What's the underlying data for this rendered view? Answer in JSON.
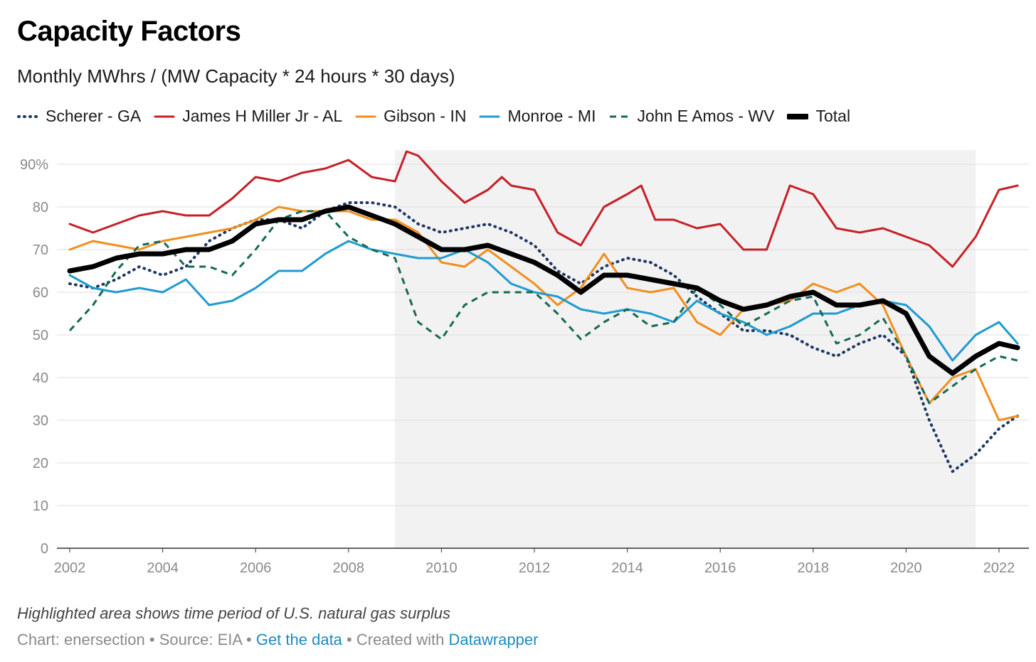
{
  "header": {
    "title": "Capacity Factors",
    "subtitle": "Monthly MWhrs / (MW Capacity * 24 hours * 30 days)"
  },
  "footer": {
    "note": "Highlighted area shows time period of U.S. natural gas surplus",
    "chart_by": "Chart: enersection",
    "sep": " • ",
    "source": "Source: EIA",
    "get_data": "Get the data",
    "created_with": "Created with",
    "datawrapper": "Datawrapper"
  },
  "colors": {
    "scherer": "#1f3864",
    "miller": "#c71f26",
    "gibson": "#f28e1c",
    "monroe": "#1f9bd0",
    "amos": "#146a52",
    "total": "#000000",
    "highlight": "#f2f2f3",
    "grid": "#dddddd"
  },
  "chart_data": {
    "type": "line",
    "title": "Capacity Factors",
    "subtitle": "Monthly MWhrs / (MW Capacity * 24 hours * 30 days)",
    "x_ticks": [
      "2002",
      "2004",
      "2006",
      "2008",
      "2010",
      "2012",
      "2014",
      "2016",
      "2018",
      "2020",
      "2022"
    ],
    "y_ticks": [
      "0",
      "10",
      "20",
      "30",
      "40",
      "50",
      "60",
      "70",
      "80",
      "90%"
    ],
    "ylim": [
      0,
      90
    ],
    "xlim": [
      2002,
      2022.5
    ],
    "grid": true,
    "legend_position": "top-left",
    "highlight_band": {
      "from": 2009.0,
      "to": 2021.5,
      "label": "U.S. natural gas surplus"
    },
    "series": [
      {
        "name": "Scherer - GA",
        "key": "scherer",
        "style": "dotted",
        "points": [
          [
            2002,
            62
          ],
          [
            2002.5,
            61
          ],
          [
            2003,
            63
          ],
          [
            2003.5,
            66
          ],
          [
            2004,
            64
          ],
          [
            2004.5,
            66
          ],
          [
            2005,
            72
          ],
          [
            2005.5,
            75
          ],
          [
            2006,
            77
          ],
          [
            2006.5,
            77
          ],
          [
            2007,
            75
          ],
          [
            2007.5,
            79
          ],
          [
            2008,
            81
          ],
          [
            2008.5,
            81
          ],
          [
            2009,
            80
          ],
          [
            2009.5,
            76
          ],
          [
            2010,
            74
          ],
          [
            2010.5,
            75
          ],
          [
            2011,
            76
          ],
          [
            2011.5,
            74
          ],
          [
            2012,
            71
          ],
          [
            2012.5,
            65
          ],
          [
            2013,
            62
          ],
          [
            2013.5,
            66
          ],
          [
            2014,
            68
          ],
          [
            2014.5,
            67
          ],
          [
            2015,
            64
          ],
          [
            2015.5,
            59
          ],
          [
            2016,
            55
          ],
          [
            2016.5,
            51
          ],
          [
            2017,
            51
          ],
          [
            2017.5,
            50
          ],
          [
            2018,
            47
          ],
          [
            2018.5,
            45
          ],
          [
            2019,
            48
          ],
          [
            2019.5,
            50
          ],
          [
            2020,
            45
          ],
          [
            2020.5,
            30
          ],
          [
            2021,
            18
          ],
          [
            2021.5,
            22
          ],
          [
            2022,
            28
          ],
          [
            2022.4,
            31
          ]
        ]
      },
      {
        "name": "James H Miller Jr - AL",
        "key": "miller",
        "style": "solid",
        "points": [
          [
            2002,
            76
          ],
          [
            2002.5,
            74
          ],
          [
            2003,
            76
          ],
          [
            2003.5,
            78
          ],
          [
            2004,
            79
          ],
          [
            2004.5,
            78
          ],
          [
            2005,
            78
          ],
          [
            2005.5,
            82
          ],
          [
            2006,
            87
          ],
          [
            2006.5,
            86
          ],
          [
            2007,
            88
          ],
          [
            2007.5,
            89
          ],
          [
            2008,
            91
          ],
          [
            2008.5,
            87
          ],
          [
            2009,
            86
          ],
          [
            2009.25,
            93
          ],
          [
            2009.5,
            92
          ],
          [
            2010,
            86
          ],
          [
            2010.5,
            81
          ],
          [
            2011,
            84
          ],
          [
            2011.3,
            87
          ],
          [
            2011.5,
            85
          ],
          [
            2012,
            84
          ],
          [
            2012.5,
            74
          ],
          [
            2013,
            71
          ],
          [
            2013.5,
            80
          ],
          [
            2014,
            83
          ],
          [
            2014.3,
            85
          ],
          [
            2014.6,
            77
          ],
          [
            2015,
            77
          ],
          [
            2015.5,
            75
          ],
          [
            2016,
            76
          ],
          [
            2016.5,
            70
          ],
          [
            2017,
            70
          ],
          [
            2017.5,
            85
          ],
          [
            2018,
            83
          ],
          [
            2018.5,
            75
          ],
          [
            2019,
            74
          ],
          [
            2019.5,
            75
          ],
          [
            2020,
            73
          ],
          [
            2020.5,
            71
          ],
          [
            2021,
            66
          ],
          [
            2021.5,
            73
          ],
          [
            2022,
            84
          ],
          [
            2022.4,
            85
          ]
        ]
      },
      {
        "name": "Gibson - IN",
        "key": "gibson",
        "style": "solid",
        "points": [
          [
            2002,
            70
          ],
          [
            2002.5,
            72
          ],
          [
            2003,
            71
          ],
          [
            2003.5,
            70
          ],
          [
            2004,
            72
          ],
          [
            2004.5,
            73
          ],
          [
            2005,
            74
          ],
          [
            2005.5,
            75
          ],
          [
            2006,
            77
          ],
          [
            2006.5,
            80
          ],
          [
            2007,
            79
          ],
          [
            2007.5,
            79
          ],
          [
            2008,
            79
          ],
          [
            2008.5,
            77
          ],
          [
            2009,
            77
          ],
          [
            2009.5,
            74
          ],
          [
            2010,
            67
          ],
          [
            2010.5,
            66
          ],
          [
            2011,
            70
          ],
          [
            2011.5,
            66
          ],
          [
            2012,
            62
          ],
          [
            2012.5,
            57
          ],
          [
            2013,
            61
          ],
          [
            2013.5,
            69
          ],
          [
            2014,
            61
          ],
          [
            2014.5,
            60
          ],
          [
            2015,
            61
          ],
          [
            2015.5,
            53
          ],
          [
            2016,
            50
          ],
          [
            2016.5,
            56
          ],
          [
            2017,
            57
          ],
          [
            2017.5,
            58
          ],
          [
            2018,
            62
          ],
          [
            2018.5,
            60
          ],
          [
            2019,
            62
          ],
          [
            2019.5,
            57
          ],
          [
            2020,
            45
          ],
          [
            2020.5,
            34
          ],
          [
            2021,
            40
          ],
          [
            2021.5,
            42
          ],
          [
            2022,
            30
          ],
          [
            2022.4,
            31
          ]
        ]
      },
      {
        "name": "Monroe - MI",
        "key": "monroe",
        "style": "solid",
        "points": [
          [
            2002,
            64
          ],
          [
            2002.5,
            61
          ],
          [
            2003,
            60
          ],
          [
            2003.5,
            61
          ],
          [
            2004,
            60
          ],
          [
            2004.5,
            63
          ],
          [
            2005,
            57
          ],
          [
            2005.5,
            58
          ],
          [
            2006,
            61
          ],
          [
            2006.5,
            65
          ],
          [
            2007,
            65
          ],
          [
            2007.5,
            69
          ],
          [
            2008,
            72
          ],
          [
            2008.5,
            70
          ],
          [
            2009,
            69
          ],
          [
            2009.5,
            68
          ],
          [
            2010,
            68
          ],
          [
            2010.5,
            70
          ],
          [
            2011,
            67
          ],
          [
            2011.5,
            62
          ],
          [
            2012,
            60
          ],
          [
            2012.5,
            59
          ],
          [
            2013,
            56
          ],
          [
            2013.5,
            55
          ],
          [
            2014,
            56
          ],
          [
            2014.5,
            55
          ],
          [
            2015,
            53
          ],
          [
            2015.5,
            58
          ],
          [
            2016,
            55
          ],
          [
            2016.5,
            53
          ],
          [
            2017,
            50
          ],
          [
            2017.5,
            52
          ],
          [
            2018,
            55
          ],
          [
            2018.5,
            55
          ],
          [
            2019,
            57
          ],
          [
            2019.5,
            58
          ],
          [
            2020,
            57
          ],
          [
            2020.5,
            52
          ],
          [
            2021,
            44
          ],
          [
            2021.5,
            50
          ],
          [
            2022,
            53
          ],
          [
            2022.4,
            48
          ]
        ]
      },
      {
        "name": "John E Amos - WV",
        "key": "amos",
        "style": "dashed",
        "points": [
          [
            2002,
            51
          ],
          [
            2002.5,
            57
          ],
          [
            2003,
            65
          ],
          [
            2003.5,
            71
          ],
          [
            2004,
            72
          ],
          [
            2004.5,
            66
          ],
          [
            2005,
            66
          ],
          [
            2005.5,
            64
          ],
          [
            2006,
            70
          ],
          [
            2006.5,
            77
          ],
          [
            2007,
            79
          ],
          [
            2007.5,
            79
          ],
          [
            2008,
            73
          ],
          [
            2008.5,
            70
          ],
          [
            2009,
            68
          ],
          [
            2009.5,
            53
          ],
          [
            2010,
            49
          ],
          [
            2010.5,
            57
          ],
          [
            2011,
            60
          ],
          [
            2011.5,
            60
          ],
          [
            2012,
            60
          ],
          [
            2012.5,
            55
          ],
          [
            2013,
            49
          ],
          [
            2013.5,
            53
          ],
          [
            2014,
            56
          ],
          [
            2014.5,
            52
          ],
          [
            2015,
            53
          ],
          [
            2015.5,
            61
          ],
          [
            2016,
            57
          ],
          [
            2016.5,
            52
          ],
          [
            2017,
            55
          ],
          [
            2017.5,
            58
          ],
          [
            2018,
            59
          ],
          [
            2018.5,
            48
          ],
          [
            2019,
            50
          ],
          [
            2019.5,
            54
          ],
          [
            2020,
            45
          ],
          [
            2020.5,
            34
          ],
          [
            2021,
            38
          ],
          [
            2021.5,
            42
          ],
          [
            2022,
            45
          ],
          [
            2022.4,
            44
          ]
        ]
      },
      {
        "name": "Total",
        "key": "total",
        "style": "thick",
        "points": [
          [
            2002,
            65
          ],
          [
            2002.5,
            66
          ],
          [
            2003,
            68
          ],
          [
            2003.5,
            69
          ],
          [
            2004,
            69
          ],
          [
            2004.5,
            70
          ],
          [
            2005,
            70
          ],
          [
            2005.5,
            72
          ],
          [
            2006,
            76
          ],
          [
            2006.5,
            77
          ],
          [
            2007,
            77
          ],
          [
            2007.5,
            79
          ],
          [
            2008,
            80
          ],
          [
            2008.5,
            78
          ],
          [
            2009,
            76
          ],
          [
            2009.5,
            73
          ],
          [
            2010,
            70
          ],
          [
            2010.5,
            70
          ],
          [
            2011,
            71
          ],
          [
            2011.5,
            69
          ],
          [
            2012,
            67
          ],
          [
            2012.5,
            64
          ],
          [
            2013,
            60
          ],
          [
            2013.5,
            64
          ],
          [
            2014,
            64
          ],
          [
            2014.5,
            63
          ],
          [
            2015,
            62
          ],
          [
            2015.5,
            61
          ],
          [
            2016,
            58
          ],
          [
            2016.5,
            56
          ],
          [
            2017,
            57
          ],
          [
            2017.5,
            59
          ],
          [
            2018,
            60
          ],
          [
            2018.5,
            57
          ],
          [
            2019,
            57
          ],
          [
            2019.5,
            58
          ],
          [
            2020,
            55
          ],
          [
            2020.5,
            45
          ],
          [
            2021,
            41
          ],
          [
            2021.5,
            45
          ],
          [
            2022,
            48
          ],
          [
            2022.4,
            47
          ]
        ]
      }
    ]
  }
}
